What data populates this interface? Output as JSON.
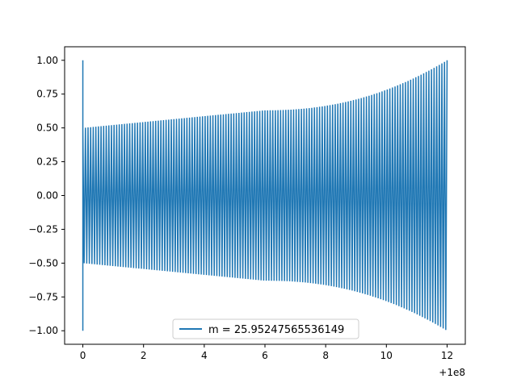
{
  "chart_data": {
    "type": "line",
    "title": "",
    "xlabel": "",
    "ylabel": "",
    "x_offset_label": "+1e8",
    "xlim": [
      -0.6,
      12.6
    ],
    "ylim": [
      -1.1,
      1.1
    ],
    "x_ticks": [
      0,
      2,
      4,
      6,
      8,
      10,
      12
    ],
    "x_tick_labels": [
      "0",
      "2",
      "4",
      "6",
      "8",
      "10",
      "12"
    ],
    "y_ticks": [
      1.0,
      0.75,
      0.5,
      0.25,
      0.0,
      -0.25,
      -0.5,
      -0.75,
      -1.0
    ],
    "y_tick_labels": [
      "1.00",
      "0.75",
      "0.50",
      "0.25",
      "0.00",
      "−0.25",
      "−0.50",
      "−0.75",
      "−1.00"
    ],
    "grid": false,
    "legend_position": "bottom-center",
    "series": [
      {
        "name": "m = 25.95247565536149",
        "color": "#1f77b4",
        "x_start": 0,
        "x_end": 12,
        "cycles": 140,
        "initial_value": 1.0,
        "initial_trough": -1.0,
        "amplitude_start": 0.5,
        "amplitude_mid": 0.63,
        "amplitude_end": 1.0
      }
    ]
  }
}
